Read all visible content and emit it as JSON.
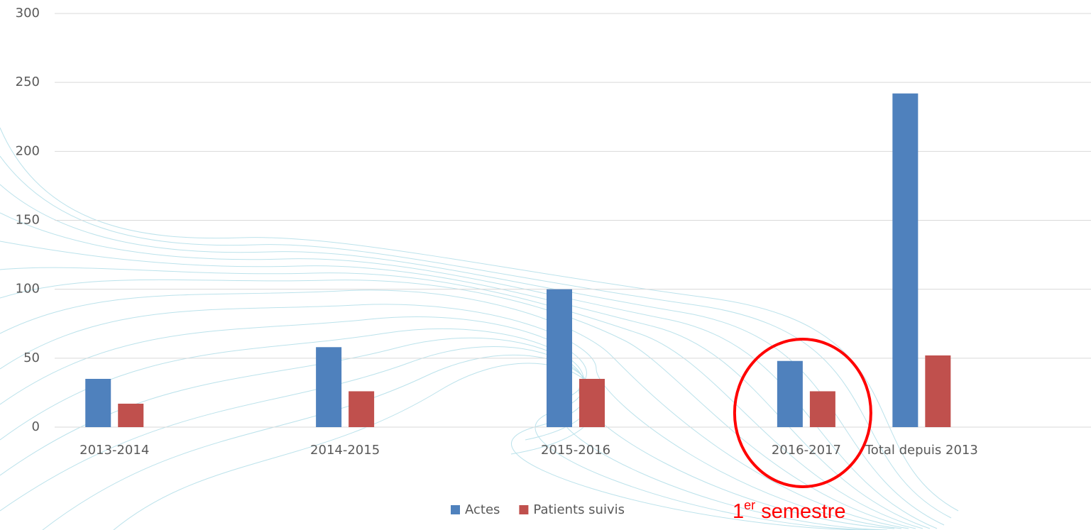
{
  "chart_data": {
    "type": "bar",
    "categories": [
      "2013-2014",
      null,
      "2014-2015",
      null,
      "2015-2016",
      null,
      "2016-2017",
      "Total depuis 2013",
      null
    ],
    "series": [
      {
        "name": "Actes",
        "color": "#4f81bd",
        "values": [
          35,
          null,
          58,
          null,
          100,
          null,
          48,
          242,
          null
        ]
      },
      {
        "name": "Patients suivis",
        "color": "#c0504d",
        "values": [
          17,
          null,
          26,
          null,
          35,
          null,
          26,
          52,
          null
        ]
      }
    ],
    "ylim": [
      0,
      300
    ],
    "yticks": [
      0,
      50,
      100,
      150,
      200,
      250,
      300
    ],
    "grid": true,
    "legend": "bottom",
    "annotation": {
      "number": "1",
      "superscript": "er",
      "text": "semestre",
      "color": "#ff0000"
    }
  }
}
